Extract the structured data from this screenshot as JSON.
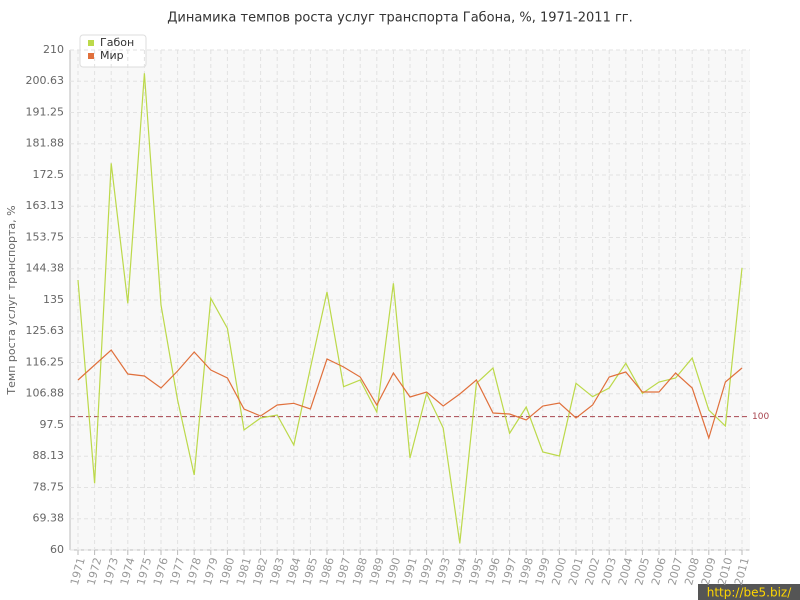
{
  "chart_data": {
    "type": "line",
    "title": "Динамика темпов роста услуг транспорта Габона, %, 1971-2011 гг.",
    "y_label": "Темп роста услуг транспорта, %",
    "categories": [
      "1971",
      "1972",
      "1973",
      "1974",
      "1975",
      "1976",
      "1977",
      "1978",
      "1979",
      "1980",
      "1981",
      "1982",
      "1983",
      "1984",
      "1985",
      "1986",
      "1987",
      "1988",
      "1989",
      "1990",
      "1991",
      "1992",
      "1993",
      "1994",
      "1995",
      "1996",
      "1997",
      "1998",
      "1999",
      "2000",
      "2001",
      "2002",
      "2003",
      "2004",
      "2005",
      "2006",
      "2007",
      "2008",
      "2009",
      "2010",
      "2011"
    ],
    "series": [
      {
        "name": "Габон",
        "color": "#bcd94a",
        "values": [
          141,
          80,
          176,
          134,
          203,
          133.5,
          105,
          82.5,
          135.5,
          126.5,
          96,
          99.6,
          100.5,
          91.5,
          114.6,
          137.4,
          109,
          111,
          101.4,
          140,
          87.6,
          107,
          96.6,
          62,
          110,
          114.6,
          95,
          102.9,
          89.4,
          88.2,
          110,
          106,
          108.6,
          116,
          107,
          110.4,
          111.6,
          117.6,
          102,
          97.2,
          144.6
        ]
      },
      {
        "name": "Мир",
        "color": "#e0703c",
        "values": [
          111,
          115.5,
          120,
          112.8,
          112.2,
          108.6,
          113.7,
          119.4,
          114,
          111.6,
          102.3,
          100.2,
          103.5,
          104,
          102.3,
          117.3,
          114.9,
          111.9,
          103.5,
          113.1,
          105.9,
          107.4,
          103.2,
          106.8,
          111,
          101.1,
          100.8,
          99,
          103.2,
          104.1,
          99.6,
          103.5,
          111.9,
          113.4,
          107.4,
          107.4,
          113.1,
          108.6,
          93.6,
          110.4,
          114.6
        ]
      }
    ],
    "ylim": [
      60,
      210
    ],
    "yticks": [
      60,
      69.38,
      78.75,
      88.13,
      97.5,
      106.88,
      116.25,
      125.63,
      135,
      144.38,
      153.75,
      163.13,
      172.5,
      181.88,
      191.25,
      200.63,
      210
    ],
    "reference_line": 100,
    "reference_color": "#a8454f",
    "grid": true,
    "legend": "top-left",
    "watermark": "http://be5.biz/"
  }
}
